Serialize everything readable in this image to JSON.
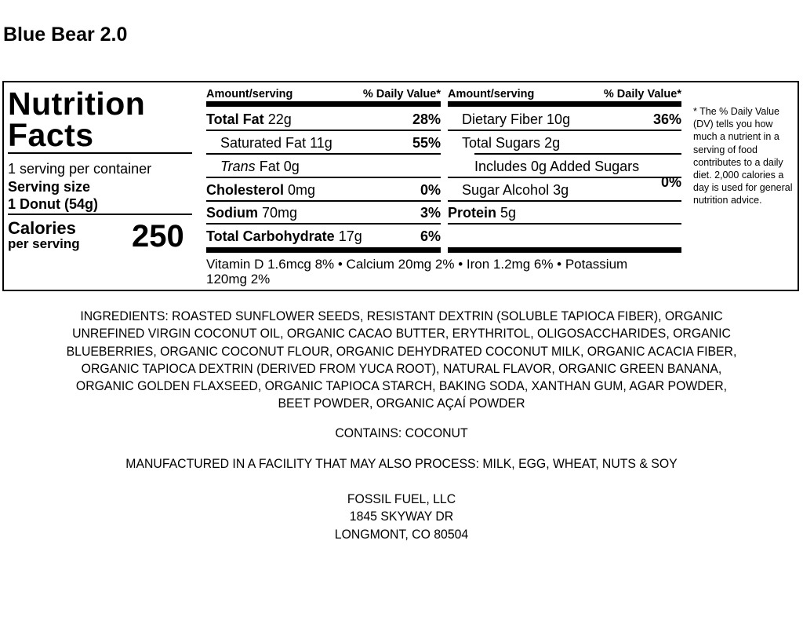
{
  "product_title": "Blue Bear 2.0",
  "panel": {
    "heading_line1": "Nutrition",
    "heading_line2": "Facts",
    "servings_per_container": "1 serving per container",
    "serving_size_label": "Serving size",
    "serving_size_value": "1 Donut (54g)",
    "calories_label": "Calories",
    "calories_sublabel": "per serving",
    "calories_value": "250",
    "left_table": {
      "header_amount": "Amount/serving",
      "header_dv": "% Daily Value*",
      "rows": [
        {
          "name": "Total Fat",
          "amount": "22g",
          "dv": "28%"
        },
        {
          "name": "Saturated Fat",
          "amount": "11g",
          "dv": "55%"
        },
        {
          "name": "Trans",
          "name_suffix": "Fat",
          "amount": "0g",
          "dv": ""
        },
        {
          "name": "Cholesterol",
          "amount": "0mg",
          "dv": "0%"
        },
        {
          "name": "Sodium",
          "amount": "70mg",
          "dv": "3%"
        },
        {
          "name": "Total Carbohydrate",
          "amount": "17g",
          "dv": "6%"
        }
      ]
    },
    "right_table": {
      "header_amount": "Amount/serving",
      "header_dv": "% Daily Value*",
      "rows": [
        {
          "name": "Dietary Fiber",
          "amount": "10g",
          "dv": "36%"
        },
        {
          "name": "Total Sugars",
          "amount": "2g",
          "dv": ""
        },
        {
          "name": "Includes 0g Added Sugars",
          "amount": "",
          "dv": "0%"
        },
        {
          "name": "Sugar Alcohol",
          "amount": "3g",
          "dv": ""
        },
        {
          "name": "Protein",
          "amount": "5g",
          "dv": ""
        }
      ]
    },
    "vitamins_line1": "Vitamin D 1.6mcg 8% • Calcium 20mg 2% • Iron 1.2mg 6% • Potassium",
    "vitamins_line2": "120mg 2%",
    "footnote": "* The % Daily Value (DV) tells you how much a nutrient in a serving of food contributes to a daily diet. 2,000 calories a day is used for general nutrition advice."
  },
  "ingredients": [
    "INGREDIENTS: ROASTED SUNFLOWER SEEDS, RESISTANT DEXTRIN (SOLUBLE TAPIOCA FIBER), ORGANIC",
    "UNREFINED VIRGIN COCONUT OIL, ORGANIC CACAO BUTTER, ERYTHRITOL, OLIGOSACCHARIDES, ORGANIC",
    "BLUEBERRIES, ORGANIC COCONUT FLOUR, ORGANIC DEHYDRATED COCONUT MILK, ORGANIC ACACIA FIBER,",
    "ORGANIC TAPIOCA DEXTRIN (DERIVED FROM YUCA ROOT), NATURAL FLAVOR, ORGANIC GREEN BANANA,",
    "ORGANIC GOLDEN FLAXSEED, ORGANIC TAPIOCA STARCH, BAKING SODA, XANTHAN GUM, AGAR POWDER,",
    "BEET POWDER, ORGANIC AÇAÍ POWDER"
  ],
  "contains": "CONTAINS: COCONUT",
  "facility_notice": "MANUFACTURED IN A FACILITY THAT MAY ALSO PROCESS: MILK, EGG, WHEAT, NUTS & SOY",
  "manufacturer": {
    "name": "FOSSIL FUEL, LLC",
    "street": "1845 SKYWAY DR",
    "city": "LONGMONT, CO 80504"
  }
}
